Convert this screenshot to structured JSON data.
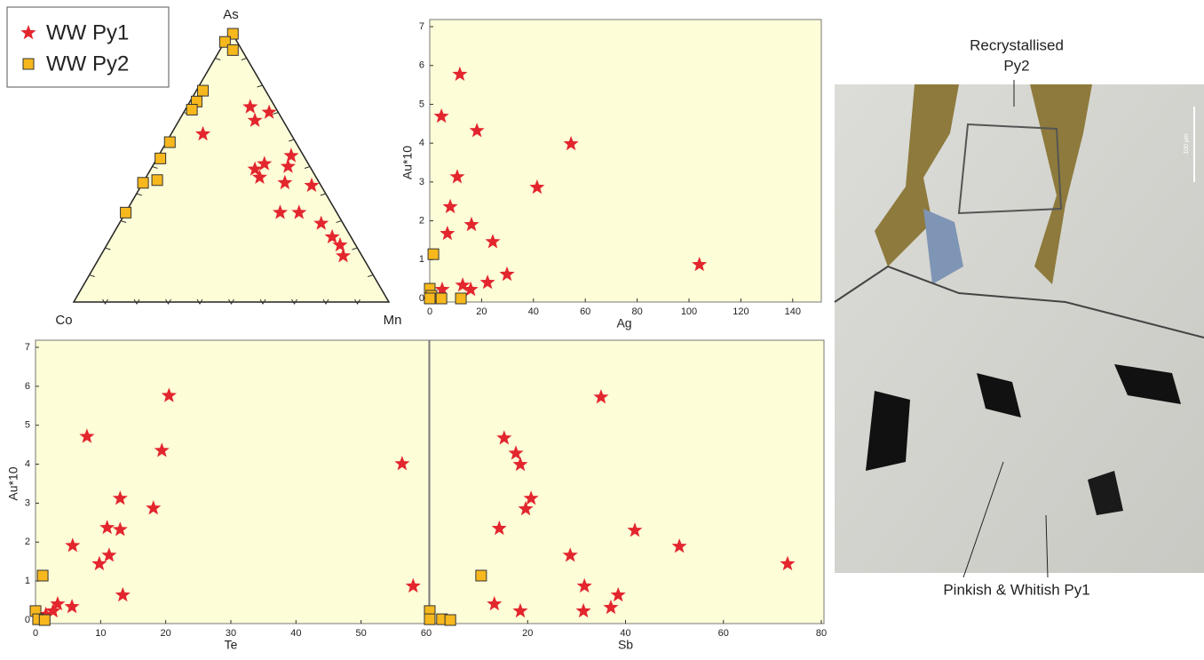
{
  "chart_data": [
    {
      "type": "ternary",
      "labels": {
        "top": "As",
        "left": "Co",
        "right": "Mn"
      },
      "series": [
        {
          "name": "WW Py1",
          "color": "#e3262e",
          "as": [
            72,
            67,
            70,
            62,
            51,
            49,
            46,
            54,
            50,
            44,
            43,
            33,
            33,
            29,
            24,
            21,
            17
          ],
          "mn": [
            20,
            24,
            27,
            10,
            35,
            33,
            36,
            42,
            43,
            45,
            54,
            49,
            55,
            64,
            70,
            74,
            77
          ],
          "co": [
            8,
            9,
            3,
            28,
            14,
            18,
            18,
            4,
            7,
            11,
            3,
            18,
            12,
            7,
            6,
            5,
            6
          ]
        },
        {
          "name": "WW Py2",
          "color": "#f7b81d",
          "as": [
            99,
            96,
            93,
            78,
            74,
            71,
            59,
            53,
            45,
            44,
            33
          ],
          "mn": [
            1,
            0,
            4,
            2,
            2,
            2,
            1,
            1,
            4,
            0,
            0
          ],
          "co": [
            0,
            4,
            3,
            20,
            24,
            27,
            40,
            46,
            51,
            56,
            67
          ]
        }
      ]
    },
    {
      "type": "scatter",
      "x_label": "Ag",
      "y_label": "Au*10",
      "xlim": [
        0,
        150
      ],
      "xticks": [
        0,
        20,
        40,
        60,
        80,
        100,
        120,
        140
      ],
      "ylim": [
        0,
        7
      ],
      "yticks": [
        0,
        1,
        2,
        3,
        4,
        5,
        6,
        7
      ],
      "series": [
        {
          "name": "WW Py1",
          "color": "#e3262e",
          "x": [
            11.6,
            4.5,
            18.2,
            54.5,
            10.6,
            41.4,
            7.9,
            16.1,
            6.8,
            24.3,
            104,
            29.8,
            22.3,
            12.7,
            15.8,
            4.8
          ],
          "values": [
            5.77,
            4.69,
            4.32,
            3.98,
            3.13,
            2.86,
            2.36,
            1.9,
            1.67,
            1.46,
            0.87,
            0.62,
            0.41,
            0.34,
            0.23,
            0.23
          ]
        },
        {
          "name": "WW Py2",
          "color": "#f7b81d",
          "x": [
            1.4,
            0,
            0.7,
            4.5,
            12,
            0
          ],
          "values": [
            1.14,
            0.25,
            0.07,
            0,
            0,
            0
          ]
        }
      ]
    },
    {
      "type": "scatter",
      "x_label": "Te",
      "y_label": "Au*10",
      "xlim": [
        0,
        60
      ],
      "xticks": [
        0,
        10,
        20,
        30,
        40,
        50,
        60
      ],
      "ylim": [
        0,
        7
      ],
      "yticks": [
        0,
        1,
        2,
        3,
        4,
        5,
        6,
        7
      ],
      "series": [
        {
          "name": "WW Py1",
          "color": "#e3262e",
          "x": [
            20.5,
            7.9,
            19.4,
            56.3,
            13,
            18.1,
            11,
            13,
            5.7,
            11.3,
            9.8,
            58,
            13.4,
            5.6,
            3.4,
            2.7,
            1.6
          ],
          "values": [
            5.76,
            4.71,
            4.35,
            4.01,
            3.12,
            2.87,
            2.37,
            2.32,
            1.91,
            1.66,
            1.44,
            0.87,
            0.64,
            0.34,
            0.41,
            0.23,
            0.14
          ]
        },
        {
          "name": "WW Py2",
          "color": "#f7b81d",
          "x": [
            1.1,
            0,
            0.4,
            1.4
          ],
          "values": [
            1.14,
            0.23,
            0.02,
            0
          ]
        }
      ]
    },
    {
      "type": "scatter",
      "x_label": "Sb",
      "xlim": [
        0,
        80
      ],
      "xticks": [
        20,
        40,
        60,
        80
      ],
      "ylim": [
        0,
        7
      ],
      "series": [
        {
          "name": "WW Py1",
          "color": "#e3262e",
          "x": [
            35,
            15.2,
            17.6,
            18.5,
            20.7,
            19.6,
            14.2,
            41.9,
            51,
            28.7,
            73.1,
            31.6,
            38.5,
            13.2,
            37,
            31.4,
            18.5
          ],
          "values": [
            5.72,
            4.67,
            4.28,
            3.99,
            3.12,
            2.85,
            2.35,
            2.3,
            1.89,
            1.66,
            1.44,
            0.87,
            0.64,
            0.41,
            0.32,
            0.23,
            0.23
          ]
        },
        {
          "name": "WW Py2",
          "color": "#f7b81d",
          "x": [
            10.5,
            0,
            0,
            2.5,
            4.2
          ],
          "values": [
            1.14,
            0.23,
            0.02,
            0.02,
            0
          ]
        }
      ]
    }
  ],
  "image_annotations": {
    "top_line1": "Recrystallised",
    "top_line2": "Py2",
    "bottom": "Pinkish & Whitish Py1",
    "scale": "100 µm"
  }
}
